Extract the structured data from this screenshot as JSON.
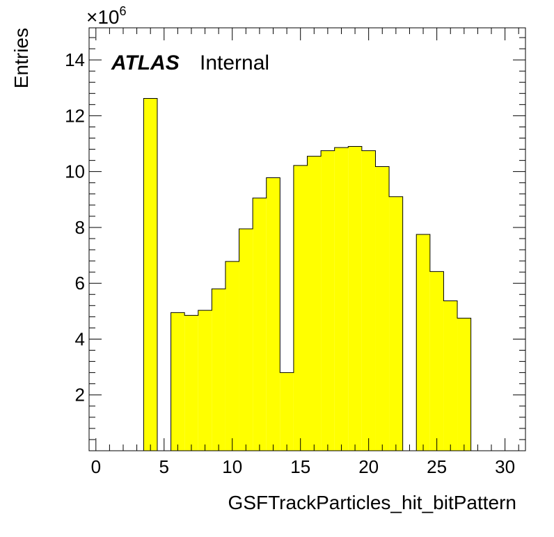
{
  "chart_data": {
    "type": "bar",
    "histogram": true,
    "x_tick_labels": [
      "0",
      "5",
      "10",
      "15",
      "20",
      "25",
      "30"
    ],
    "y_tick_labels": [
      "2",
      "4",
      "6",
      "8",
      "10",
      "12",
      "14"
    ],
    "xlabel": "GSFTrackParticles_hit_bitPattern",
    "ylabel": "Entries",
    "y_multiplier": {
      "base": "×10",
      "exponent": "6"
    },
    "xlim": [
      -0.5,
      31.5
    ],
    "ylim": [
      0,
      15.15
    ],
    "bin_edges": [
      -0.5,
      0.5,
      1.5,
      2.5,
      3.5,
      4.5,
      5.5,
      6.5,
      7.5,
      8.5,
      9.5,
      10.5,
      11.5,
      12.5,
      13.5,
      14.5,
      15.5,
      16.5,
      17.5,
      18.5,
      19.5,
      20.5,
      21.5,
      22.5,
      23.5,
      24.5,
      25.5,
      26.5,
      27.5,
      28.5,
      29.5,
      30.5,
      31.5
    ],
    "values": [
      0,
      0,
      0,
      0,
      12.62,
      0,
      4.95,
      4.85,
      5.03,
      5.8,
      6.78,
      7.95,
      9.05,
      9.78,
      2.8,
      10.22,
      10.55,
      10.75,
      10.86,
      10.9,
      10.75,
      10.18,
      9.1,
      0,
      7.75,
      6.42,
      5.37,
      4.75,
      0,
      0,
      0,
      0
    ],
    "fill_color": "#ffff00",
    "line_color": "#000000",
    "grid": false,
    "legend": "none"
  },
  "labels": {
    "atlas": "ATLAS",
    "internal": "Internal"
  }
}
